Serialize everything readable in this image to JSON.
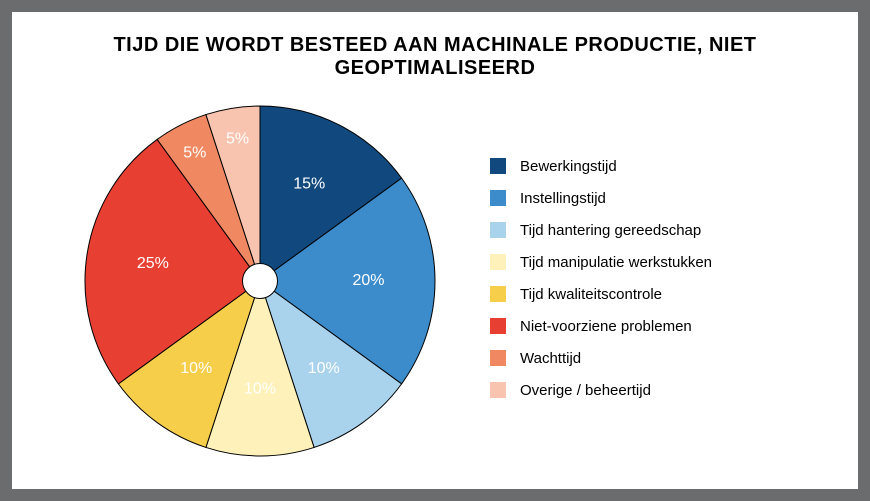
{
  "chart": {
    "type": "pie",
    "title": "TIJD DIE WORDT BESTEED AAN MACHINALE PRODUCTIE, NIET GEOPTIMALISEERD",
    "title_fontsize": 20,
    "background_color": "#ffffff",
    "outer_background_color": "#6a6c6e",
    "stroke_color": "#000000",
    "stroke_width": 1,
    "donut_hole_radius_ratio": 0.1,
    "label_color": "#ffffff",
    "label_fontsize": 16,
    "legend_position": "right",
    "start_angle_deg": -90,
    "direction": "clockwise",
    "slices": [
      {
        "label": "Bewerkingstijd",
        "value": 15,
        "pct": "15%",
        "color": "#11497f"
      },
      {
        "label": "Instellingstijd",
        "value": 20,
        "pct": "20%",
        "color": "#3c8ccb"
      },
      {
        "label": "Tijd hantering gereedschap",
        "value": 10,
        "pct": "10%",
        "color": "#a9d2ed"
      },
      {
        "label": "Tijd manipulatie werkstukken",
        "value": 10,
        "pct": "10%",
        "color": "#fef1b9"
      },
      {
        "label": "Tijd kwaliteitscontrole",
        "value": 10,
        "pct": "10%",
        "color": "#f7ce4a"
      },
      {
        "label": "Niet-voorziene problemen",
        "value": 25,
        "pct": "25%",
        "color": "#e83f33"
      },
      {
        "label": "Wachttijd",
        "value": 5,
        "pct": "5%",
        "color": "#f08961"
      },
      {
        "label": "Overige / beheertijd",
        "value": 5,
        "pct": "5%",
        "color": "#f8c4af"
      }
    ]
  }
}
